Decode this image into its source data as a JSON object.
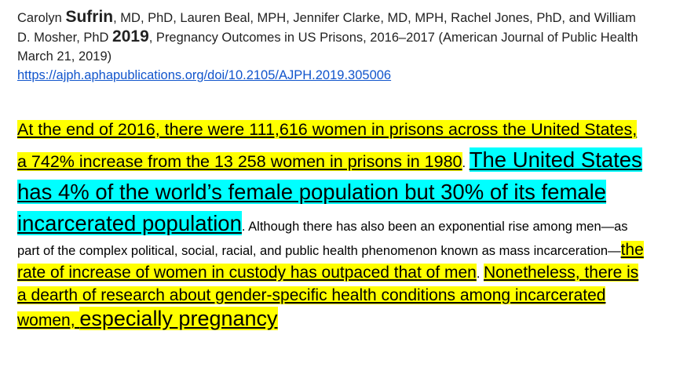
{
  "citation": {
    "authors_pre": "Carolyn ",
    "author_bold": "Sufrin",
    "authors_rest": ", MD, PhD, Lauren Beal, MPH, Jennifer Clarke, MD, MPH, Rachel Jones, PhD, and William D. Mosher, PhD ",
    "year": "2019",
    "title_source": ", Pregnancy Outcomes in US Prisons, 2016–2017 (American Journal of Public Health March 21, 2019)",
    "url": "https://ajph.aphapublications.org/doi/10.2105/AJPH.2019.305006"
  },
  "excerpt": {
    "hl1": "At the end of 2016, there were 111,616 women in prisons across the United States, a 742% increase from the 13 258 women in prisons in 1980",
    "sep1": ". ",
    "hl2": "The United States has 4% of the world’s female population but 30% of its female incarcerated population",
    "plain1": ". Although there has also been an exponential rise among men—as part of the complex political, social, racial, and public health phenomenon known as mass incarceration—",
    "hl3": "the rate of increase of women in custody has outpaced that of men",
    "sep2": ". ",
    "hl4": "Nonetheless, there is a dearth of research about gender-specific health conditions among incarcerated women, ",
    "hl5": "especially pregnancy"
  },
  "colors": {
    "highlight_yellow": "#ffff00",
    "highlight_cyan": "#00ffff",
    "link_blue": "#1155cc"
  }
}
